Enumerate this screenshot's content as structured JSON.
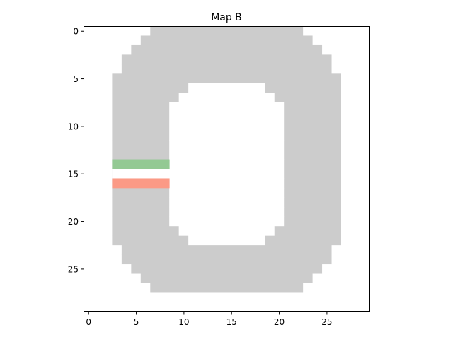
{
  "chart_data": {
    "type": "heatmap",
    "title": "Map B",
    "xlabel": "",
    "ylabel": "",
    "grid": false,
    "xlim": [
      -0.5,
      29.5
    ],
    "ylim": [
      29.5,
      -0.5
    ],
    "xticks": [
      0,
      5,
      10,
      15,
      20,
      25
    ],
    "yticks": [
      0,
      5,
      10,
      15,
      20,
      25
    ],
    "colors": {
      "track": "#cccccc",
      "start_line": "#93c993",
      "finish_line": "#fb9a86",
      "background": "#ffffff"
    },
    "track_rows": [
      {
        "row": 0,
        "start": 7,
        "end": 22
      },
      {
        "row": 1,
        "start": 6,
        "end": 23
      },
      {
        "row": 2,
        "start": 5,
        "end": 24
      },
      {
        "row": 3,
        "start": 4,
        "end": 25
      },
      {
        "row": 4,
        "start": 4,
        "end": 25
      },
      {
        "row": 5,
        "start": 3,
        "end": 26
      },
      {
        "row": 6,
        "start": 3,
        "end": 26
      },
      {
        "row": 7,
        "start": 3,
        "end": 26
      },
      {
        "row": 8,
        "start": 3,
        "end": 26
      },
      {
        "row": 9,
        "start": 3,
        "end": 26
      },
      {
        "row": 10,
        "start": 3,
        "end": 26
      },
      {
        "row": 11,
        "start": 3,
        "end": 26
      },
      {
        "row": 12,
        "start": 3,
        "end": 26
      },
      {
        "row": 13,
        "start": 3,
        "end": 26
      },
      {
        "row": 14,
        "start": 3,
        "end": 26
      },
      {
        "row": 15,
        "start": 3,
        "end": 26
      },
      {
        "row": 16,
        "start": 3,
        "end": 26
      },
      {
        "row": 17,
        "start": 3,
        "end": 26
      },
      {
        "row": 18,
        "start": 3,
        "end": 26
      },
      {
        "row": 19,
        "start": 3,
        "end": 26
      },
      {
        "row": 20,
        "start": 3,
        "end": 26
      },
      {
        "row": 21,
        "start": 3,
        "end": 26
      },
      {
        "row": 22,
        "start": 3,
        "end": 26
      },
      {
        "row": 23,
        "start": 4,
        "end": 25
      },
      {
        "row": 24,
        "start": 4,
        "end": 25
      },
      {
        "row": 25,
        "start": 5,
        "end": 24
      },
      {
        "row": 26,
        "start": 6,
        "end": 23
      },
      {
        "row": 27,
        "start": 7,
        "end": 22
      }
    ],
    "hole_rows": [
      {
        "row": 6,
        "start": 11,
        "end": 18
      },
      {
        "row": 7,
        "start": 10,
        "end": 19
      },
      {
        "row": 8,
        "start": 9,
        "end": 20
      },
      {
        "row": 9,
        "start": 9,
        "end": 20
      },
      {
        "row": 10,
        "start": 9,
        "end": 20
      },
      {
        "row": 11,
        "start": 9,
        "end": 20
      },
      {
        "row": 12,
        "start": 9,
        "end": 20
      },
      {
        "row": 13,
        "start": 9,
        "end": 20
      },
      {
        "row": 14,
        "start": 9,
        "end": 20
      },
      {
        "row": 15,
        "start": 9,
        "end": 20
      },
      {
        "row": 16,
        "start": 9,
        "end": 20
      },
      {
        "row": 17,
        "start": 9,
        "end": 20
      },
      {
        "row": 18,
        "start": 9,
        "end": 20
      },
      {
        "row": 19,
        "start": 9,
        "end": 20
      },
      {
        "row": 20,
        "start": 9,
        "end": 20
      },
      {
        "row": 21,
        "start": 10,
        "end": 19
      },
      {
        "row": 22,
        "start": 11,
        "end": 18
      }
    ],
    "gap_rows": [
      {
        "row": 15,
        "start": 3,
        "end": 8
      }
    ],
    "markers": [
      {
        "name": "start-line",
        "row": 14,
        "start": 3,
        "end": 8,
        "color": "#93c993"
      },
      {
        "name": "finish-line",
        "row": 16,
        "start": 3,
        "end": 8,
        "color": "#fb9a86"
      }
    ]
  }
}
